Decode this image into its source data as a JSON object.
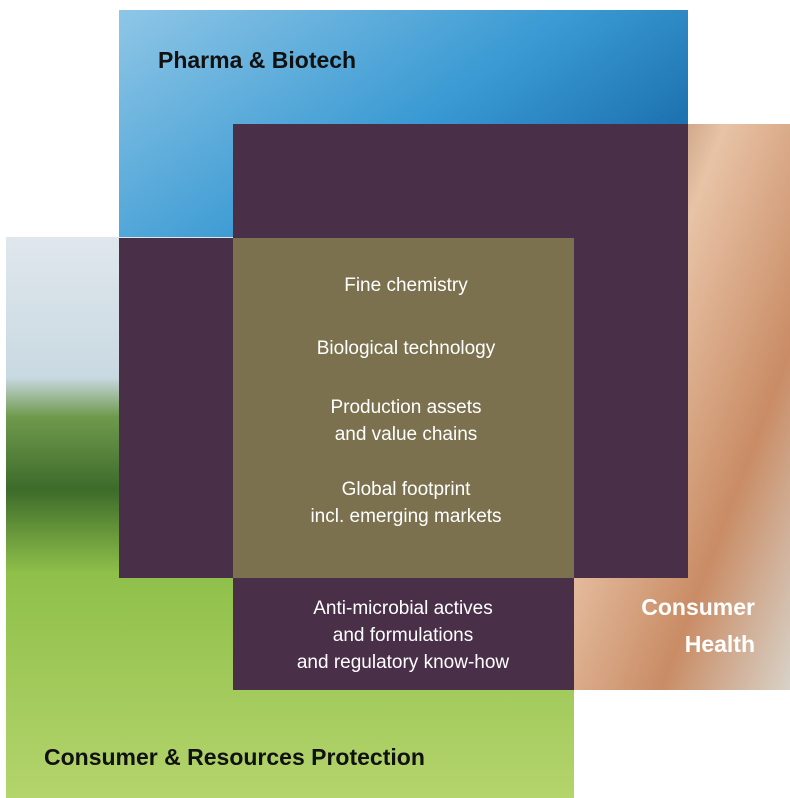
{
  "segments": [
    {
      "label": [
        "Pharma & Biotech"
      ]
    },
    {
      "label": [
        "Consumer",
        "Health"
      ]
    },
    {
      "label": [
        "Consumer & Resources Protection"
      ]
    }
  ],
  "competences": [
    [
      "Fine chemistry"
    ],
    [
      "Biological technology"
    ],
    [
      "Production assets",
      "and value chains"
    ],
    [
      "Global footprint",
      "incl. emerging markets"
    ]
  ],
  "base": [
    "Anti-microbial actives",
    "and formulations",
    "and regulatory know-how"
  ]
}
